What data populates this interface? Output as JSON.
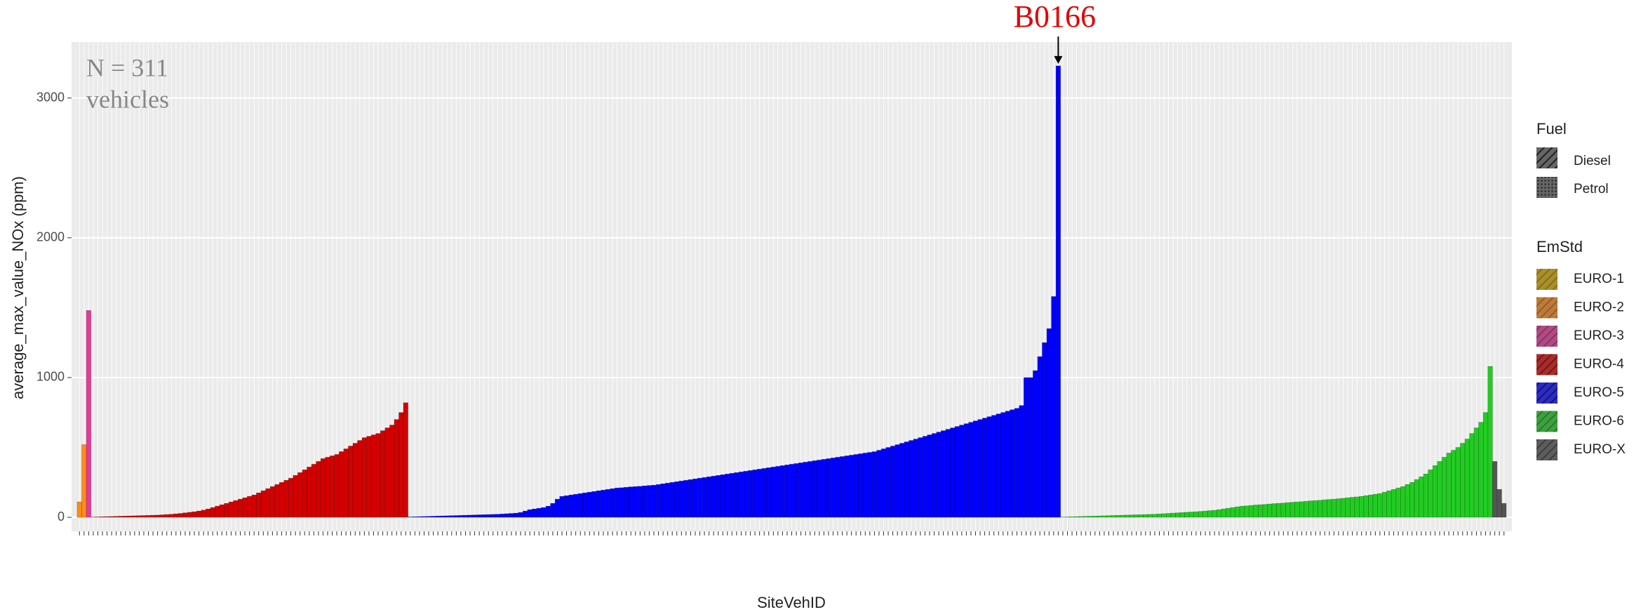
{
  "chart_data": {
    "type": "bar",
    "y_label": "average_max_value_NOx (ppm)",
    "x_label": "SiteVehID",
    "ylim": [
      -100,
      3400
    ],
    "yticks": [
      0,
      1000,
      2000,
      3000
    ],
    "grid": true,
    "note_lines": [
      "N = 311",
      "vehicles"
    ],
    "peak_label": "B0166",
    "fuel_legend": {
      "title": "Fuel",
      "items": [
        "Diesel",
        "Petrol"
      ]
    },
    "legend_title": "EmStd",
    "series": [
      {
        "name": "EURO-1",
        "color": "#e0b000",
        "values": []
      },
      {
        "name": "EURO-2",
        "color": "#ff8c1a",
        "values": [
          110,
          520
        ]
      },
      {
        "name": "EURO-3",
        "color": "#e8399b",
        "values": [
          1480
        ]
      },
      {
        "name": "EURO-4",
        "color": "#d40000",
        "values": [
          2,
          3,
          4,
          5,
          6,
          7,
          8,
          9,
          10,
          11,
          12,
          13,
          14,
          15,
          16,
          18,
          20,
          22,
          25,
          28,
          32,
          36,
          40,
          45,
          52,
          60,
          70,
          80,
          90,
          100,
          110,
          120,
          130,
          140,
          150,
          160,
          175,
          190,
          205,
          220,
          235,
          250,
          265,
          280,
          300,
          320,
          340,
          360,
          380,
          400,
          420,
          430,
          440,
          450,
          470,
          490,
          510,
          530,
          550,
          570,
          580,
          590,
          600,
          620,
          640,
          660,
          700,
          750,
          820
        ]
      },
      {
        "name": "EURO-5",
        "color": "#0000ff",
        "values": [
          3,
          4,
          5,
          6,
          7,
          8,
          9,
          10,
          11,
          12,
          13,
          14,
          15,
          16,
          17,
          18,
          19,
          20,
          21,
          22,
          24,
          26,
          28,
          30,
          35,
          45,
          55,
          60,
          65,
          70,
          80,
          100,
          130,
          150,
          155,
          160,
          165,
          170,
          175,
          180,
          185,
          190,
          195,
          200,
          205,
          210,
          212,
          215,
          218,
          220,
          222,
          225,
          228,
          230,
          235,
          240,
          245,
          250,
          255,
          260,
          265,
          270,
          275,
          280,
          285,
          290,
          295,
          300,
          305,
          310,
          315,
          320,
          325,
          330,
          335,
          340,
          345,
          350,
          355,
          360,
          365,
          370,
          375,
          380,
          385,
          390,
          395,
          400,
          405,
          410,
          415,
          420,
          425,
          430,
          435,
          440,
          445,
          450,
          455,
          460,
          465,
          470,
          480,
          490,
          500,
          510,
          520,
          530,
          540,
          550,
          560,
          570,
          580,
          590,
          600,
          610,
          620,
          630,
          640,
          650,
          660,
          670,
          680,
          690,
          700,
          710,
          720,
          730,
          740,
          750,
          760,
          770,
          780,
          800,
          1000,
          1000,
          1050,
          1150,
          1250,
          1350,
          1580,
          3230
        ]
      },
      {
        "name": "EURO-6",
        "color": "#22cc22",
        "values": [
          2,
          3,
          4,
          5,
          6,
          7,
          8,
          9,
          10,
          11,
          12,
          13,
          14,
          15,
          16,
          17,
          18,
          19,
          20,
          21,
          22,
          24,
          26,
          28,
          30,
          32,
          34,
          36,
          38,
          40,
          42,
          45,
          48,
          50,
          55,
          60,
          65,
          70,
          75,
          80,
          82,
          85,
          88,
          90,
          92,
          95,
          98,
          100,
          102,
          105,
          108,
          110,
          112,
          115,
          118,
          120,
          122,
          125,
          128,
          130,
          133,
          136,
          140,
          143,
          146,
          150,
          155,
          160,
          165,
          170,
          180,
          190,
          200,
          210,
          220,
          235,
          250,
          270,
          290,
          310,
          340,
          370,
          400,
          430,
          460,
          480,
          500,
          530,
          560,
          600,
          640,
          680,
          750,
          1080
        ]
      },
      {
        "name": "EURO-X",
        "color": "#555555",
        "values": [
          400,
          200,
          100
        ]
      }
    ]
  }
}
